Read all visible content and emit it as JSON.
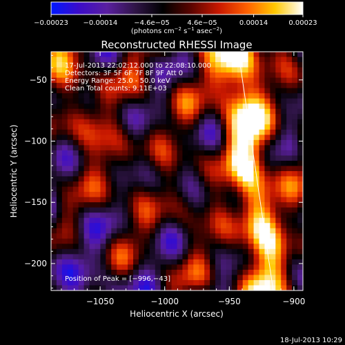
{
  "chart_data": {
    "type": "heatmap",
    "title": "Reconstructed RHESSI Image",
    "xlabel": "Heliocentric X (arcsec)",
    "ylabel": "Heliocentric Y (arcsec)",
    "xlim": [
      -1088,
      -893
    ],
    "ylim": [
      -222,
      -27
    ],
    "xticks": [
      -1050,
      -1000,
      -950,
      -900
    ],
    "xtick_labels": [
      "−1050",
      "−1000",
      "−950",
      "−900"
    ],
    "yticks": [
      -50,
      -100,
      -150,
      -200
    ],
    "ytick_labels": [
      "−50",
      "−100",
      "−150",
      "−200"
    ],
    "colorbar": {
      "min": -0.00023,
      "max": 0.00023,
      "ticks": [
        -0.00023,
        -0.00014,
        -4.6e-05,
        4.6e-05,
        0.00014,
        0.00023
      ],
      "tick_labels": [
        "−0.00023",
        "−0.00014",
        "−4.6e−05",
        "4.6e−05",
        "0.00014",
        "0.00023"
      ],
      "unit_text": "(photons cm",
      "unit_exp1": "−2",
      "unit_mid": " s",
      "unit_exp2": "−1",
      "unit_tail": " asec",
      "unit_exp3": "−2",
      "unit_close": ")",
      "colors": [
        "#0018ff",
        "#3c0cc8",
        "#5a1fa0",
        "#301548",
        "#000000",
        "#5a0400",
        "#c81800",
        "#ff6000",
        "#ffc800",
        "#ffffff"
      ]
    },
    "annotations": [
      "17-Jul-2013 22:02:12.000 to 22:08:10.000",
      "Detectors: 3F 5F 6F 7F 8F 9F  Att 0",
      "Energy Range: 25.0 - 50.0 keV",
      "Clean    Total counts: 9.11E+03"
    ],
    "peak_label": "Position of Peak = [−996,−43]",
    "peak": [
      -996,
      -43
    ],
    "limb_line": [
      [
        -943,
        -27
      ],
      [
        -916,
        -222
      ]
    ]
  },
  "footer": {
    "timestamp": "18-Jul-2013 10:29"
  }
}
